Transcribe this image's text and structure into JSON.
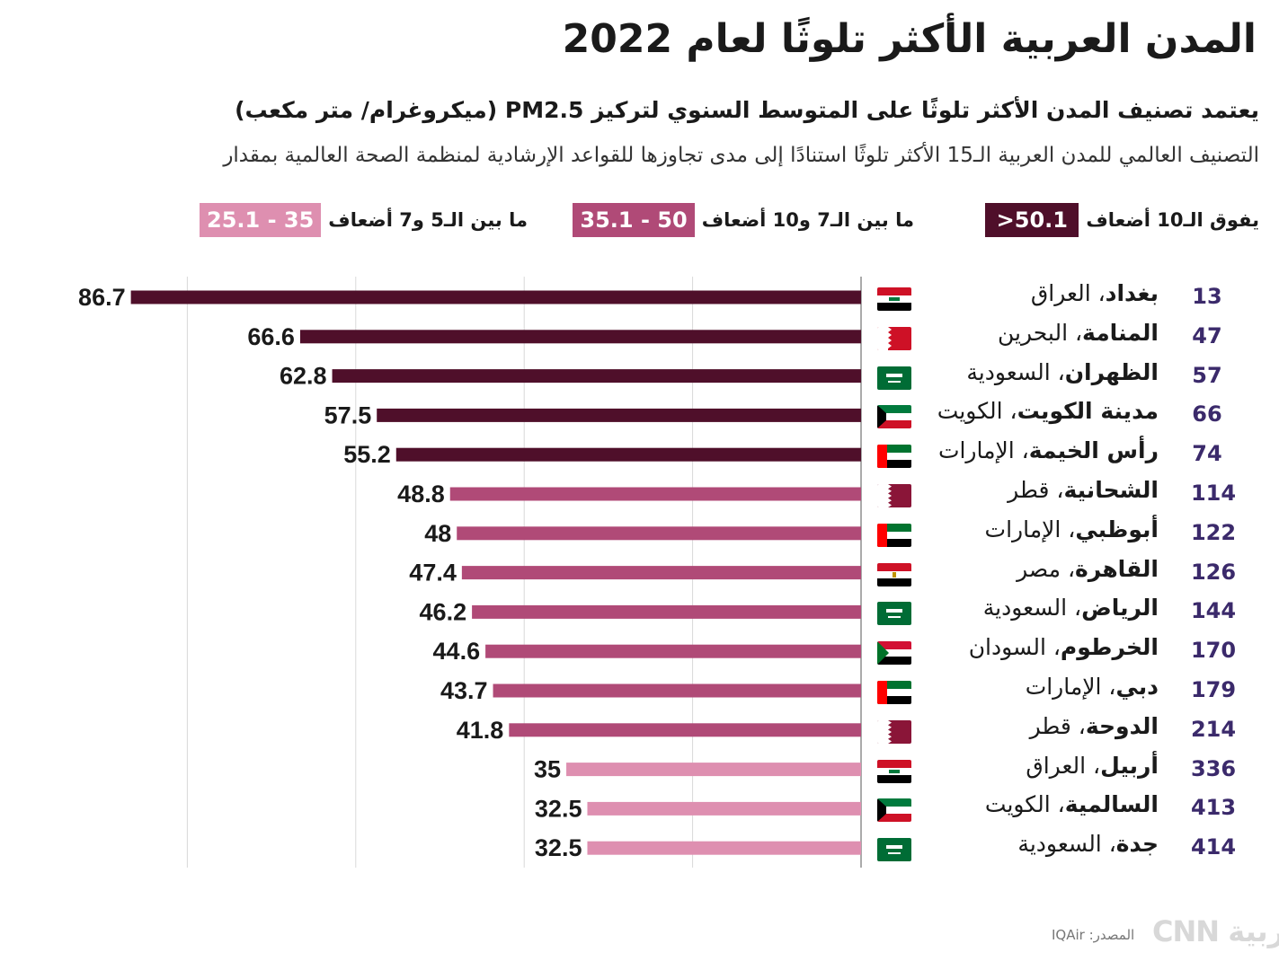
{
  "title": "المدن العربية الأكثر تلوثًا لعام 2022",
  "subtitle": "يعتمد تصنيف المدن الأكثر تلوثًا على المتوسط السنوي لتركيز PM2.5 (ميكروغرام/ متر مكعب)",
  "description": "التصنيف العالمي للمدن العربية الـ15 الأكثر تلوثًا استنادًا إلى مدى تجاوزها للقواعد الإرشادية لمنظمة الصحة العالمية بمقدار",
  "legend": [
    {
      "range": ">50.1",
      "text": "يفوق الـ10 أضعاف",
      "color": "#4f0f2a"
    },
    {
      "range": "35.1 - 50",
      "text": "ما بين الـ7 و10 أضعاف",
      "color": "#b04a77"
    },
    {
      "range": "25.1 - 35",
      "text": "ما بين الـ5 و7 أضعاف",
      "color": "#de8fb0"
    }
  ],
  "source": "المصدر: IQAir",
  "logo": "CNN بالعربية",
  "flags": {
    "iraq": "iraq",
    "bahrain": "bahrain",
    "saudi": "saudi",
    "kuwait": "kuwait",
    "uae": "uae",
    "qatar": "qatar",
    "egypt": "egypt",
    "sudan": "sudan"
  },
  "rows": [
    {
      "rank": "13",
      "city": "بغداد",
      "country": "العراق",
      "flag": "iraq"
    },
    {
      "rank": "47",
      "city": "المنامة",
      "country": "البحرين",
      "flag": "bahrain"
    },
    {
      "rank": "57",
      "city": "الظهران",
      "country": "السعودية",
      "flag": "saudi"
    },
    {
      "rank": "66",
      "city": "مدينة الكويت",
      "country": "الكويت",
      "flag": "kuwait"
    },
    {
      "rank": "74",
      "city": "رأس الخيمة",
      "country": "الإمارات",
      "flag": "uae"
    },
    {
      "rank": "114",
      "city": "الشحانية",
      "country": "قطر",
      "flag": "qatar"
    },
    {
      "rank": "122",
      "city": "أبوظبي",
      "country": "الإمارات",
      "flag": "uae"
    },
    {
      "rank": "126",
      "city": "القاهرة",
      "country": "مصر",
      "flag": "egypt"
    },
    {
      "rank": "144",
      "city": "الرياض",
      "country": "السعودية",
      "flag": "saudi"
    },
    {
      "rank": "170",
      "city": "الخرطوم",
      "country": "السودان",
      "flag": "sudan"
    },
    {
      "rank": "179",
      "city": "دبي",
      "country": "الإمارات",
      "flag": "uae"
    },
    {
      "rank": "214",
      "city": "الدوحة",
      "country": "قطر",
      "flag": "qatar"
    },
    {
      "rank": "336",
      "city": "أربيل",
      "country": "العراق",
      "flag": "iraq"
    },
    {
      "rank": "413",
      "city": "السالمية",
      "country": "الكويت",
      "flag": "kuwait"
    },
    {
      "rank": "414",
      "city": "جدة",
      "country": "السعودية",
      "flag": "saudi"
    }
  ],
  "chart_data": {
    "type": "bar",
    "orientation": "horizontal",
    "direction": "right-to-left",
    "categories": [
      "بغداد",
      "المنامة",
      "الظهران",
      "مدينة الكويت",
      "رأس الخيمة",
      "الشحانية",
      "أبوظبي",
      "القاهرة",
      "الرياض",
      "الخرطوم",
      "دبي",
      "الدوحة",
      "أربيل",
      "السالمية",
      "جدة"
    ],
    "values": [
      86.7,
      66.6,
      62.8,
      57.5,
      55.2,
      48.8,
      48,
      47.4,
      46.2,
      44.6,
      43.7,
      41.8,
      35,
      32.5,
      32.5
    ],
    "value_labels": [
      "86.7",
      "66.6",
      "62.8",
      "57.5",
      "55.2",
      "48.8",
      "48",
      "47.4",
      "46.2",
      "44.6",
      "43.7",
      "41.8",
      "35",
      "32.5",
      "32.5"
    ],
    "xlim": [
      0,
      100
    ],
    "grid": true,
    "title": "المدن العربية الأكثر تلوثًا لعام 2022",
    "ylabel": "PM2.5"
  }
}
